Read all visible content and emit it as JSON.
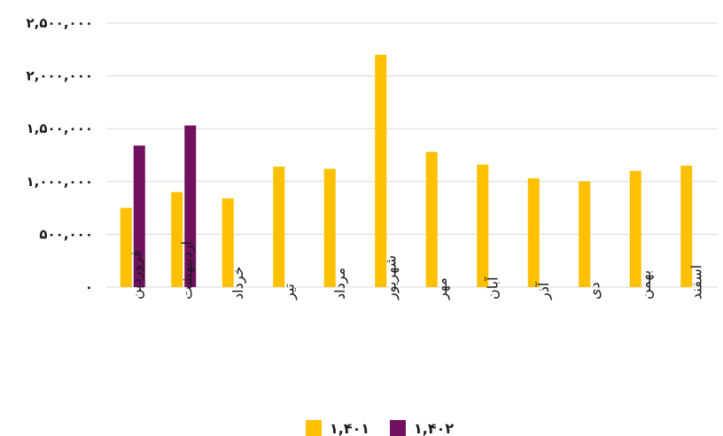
{
  "chart_data": {
    "type": "bar",
    "title": "",
    "xlabel": "",
    "ylabel": "",
    "categories": [
      "فروردین",
      "اردیبهشت",
      "خرداد",
      "تیر",
      "مرداد",
      "شهریور",
      "مهر",
      "آبان",
      "آذر",
      "دی",
      "بهمن",
      "اسفند"
    ],
    "series": [
      {
        "name": "۱,۴۰۱",
        "color": "#FFC000",
        "values": [
          750000,
          900000,
          840000,
          1140000,
          1120000,
          2200000,
          1280000,
          1160000,
          1030000,
          1000000,
          1100000,
          1150000
        ]
      },
      {
        "name": "۱,۴۰۲",
        "color": "#70105F",
        "values": [
          1340000,
          1530000,
          null,
          null,
          null,
          null,
          null,
          null,
          null,
          null,
          null,
          null
        ]
      }
    ],
    "ylim": [
      0,
      2500000
    ],
    "yticks": [
      0,
      500000,
      1000000,
      1500000,
      2000000,
      2500000
    ],
    "ytick_labels": [
      "۰",
      "۵۰۰,۰۰۰",
      "۱,۰۰۰,۰۰۰",
      "۱,۵۰۰,۰۰۰",
      "۲,۰۰۰,۰۰۰",
      "۲,۵۰۰,۰۰۰"
    ],
    "grid": true,
    "legend_position": "bottom"
  }
}
